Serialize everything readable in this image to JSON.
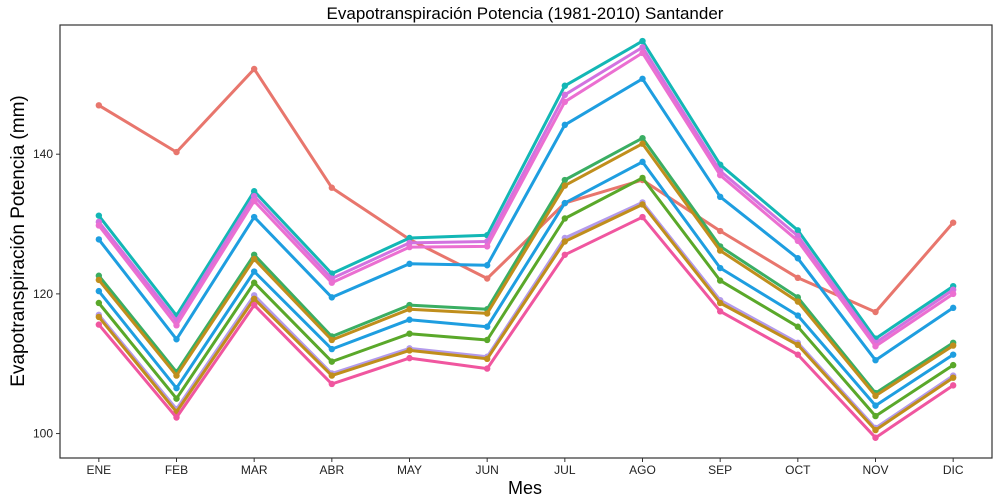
{
  "chart_data": {
    "type": "line",
    "title": "Evapotranspiración Potencia (1981-2010)  Santander",
    "xlabel": "Mes",
    "ylabel": "Evapotranspiración Potencia  (mm)",
    "categories": [
      "ENE",
      "FEB",
      "MAR",
      "ABR",
      "MAY",
      "JUN",
      "JUL",
      "AGO",
      "SEP",
      "OCT",
      "NOV",
      "DIC"
    ],
    "ylim": [
      96.5,
      158.5
    ],
    "yticks": [
      100,
      120,
      140
    ],
    "grid": false,
    "legend": "none",
    "series": [
      {
        "color": "#E8766D",
        "values": [
          147.0,
          140.3,
          152.2,
          135.2,
          127.8,
          122.2,
          133.0,
          136.3,
          129.0,
          122.3,
          117.4,
          130.2
        ]
      },
      {
        "color": "#13B7B5",
        "values": [
          131.2,
          116.9,
          134.7,
          122.9,
          128.0,
          128.4,
          149.8,
          156.2,
          138.5,
          129.1,
          113.6,
          121.1
        ]
      },
      {
        "color": "#D272E0",
        "values": [
          130.3,
          116.2,
          134.0,
          122.2,
          127.3,
          127.5,
          148.5,
          155.3,
          137.6,
          128.3,
          113.0,
          120.6
        ]
      },
      {
        "color": "#EB6FD1",
        "values": [
          129.8,
          115.5,
          133.3,
          121.6,
          126.7,
          126.8,
          147.5,
          154.5,
          137.0,
          127.6,
          112.5,
          120.0
        ]
      },
      {
        "color": "#1E9EE0",
        "values": [
          127.8,
          113.5,
          131.0,
          119.5,
          124.3,
          124.1,
          144.2,
          150.8,
          133.9,
          125.1,
          110.5,
          118.0
        ]
      },
      {
        "color": "#3AAE63",
        "values": [
          122.6,
          108.8,
          125.6,
          113.9,
          118.4,
          117.8,
          136.3,
          142.3,
          126.8,
          119.5,
          105.8,
          113.0
        ]
      },
      {
        "color": "#C08E1C",
        "values": [
          122.0,
          108.3,
          125.0,
          113.4,
          117.8,
          117.2,
          135.5,
          141.5,
          126.2,
          118.9,
          105.4,
          112.6
        ]
      },
      {
        "color": "#1E9EE0",
        "values": [
          120.4,
          106.5,
          123.2,
          112.1,
          116.3,
          115.3,
          133.0,
          138.9,
          123.7,
          116.9,
          104.0,
          111.3
        ]
      },
      {
        "color": "#5AA82A",
        "values": [
          118.7,
          105.0,
          121.6,
          110.3,
          114.3,
          113.4,
          130.8,
          136.6,
          121.9,
          115.3,
          102.5,
          109.8
        ]
      },
      {
        "color": "#B39AEB",
        "values": [
          117.0,
          103.5,
          119.8,
          108.6,
          112.2,
          111.0,
          128.0,
          133.1,
          119.1,
          113.0,
          100.8,
          108.3
        ]
      },
      {
        "color": "#C08E1C",
        "values": [
          116.7,
          103.1,
          119.3,
          108.3,
          111.9,
          110.7,
          127.5,
          132.8,
          118.7,
          112.7,
          100.5,
          108.0
        ]
      },
      {
        "color": "#F0569F",
        "values": [
          115.6,
          102.3,
          118.4,
          107.1,
          110.8,
          109.3,
          125.6,
          131.0,
          117.5,
          111.3,
          99.4,
          106.9
        ]
      }
    ]
  }
}
